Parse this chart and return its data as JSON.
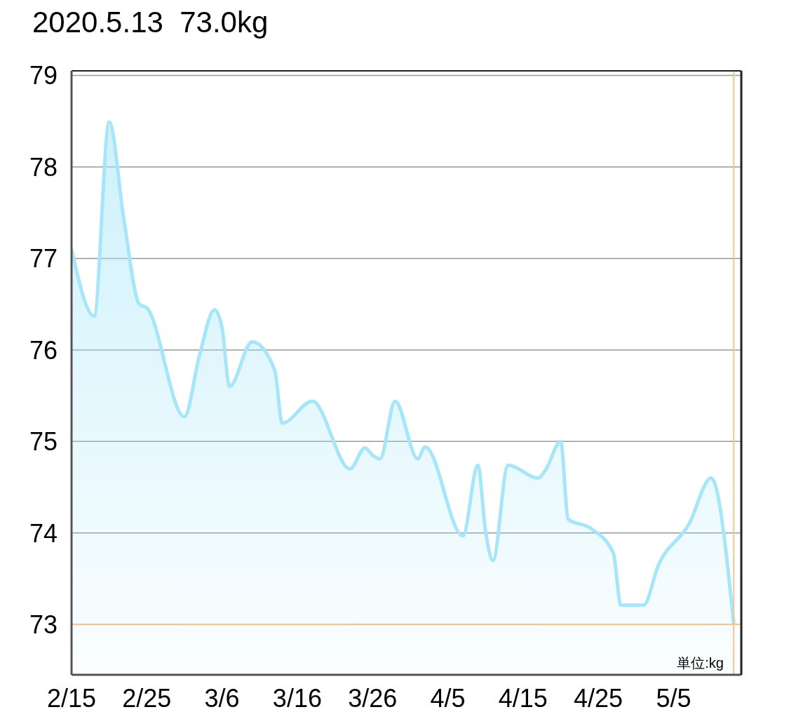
{
  "chart_data": {
    "type": "area",
    "title": "2020.5.13  73.0kg",
    "annotations": [
      "単位:kg"
    ],
    "x": [
      "2020-02-15",
      "2020-02-18",
      "2020-02-20",
      "2020-02-22",
      "2020-02-24",
      "2020-02-25",
      "2020-03-01",
      "2020-03-03",
      "2020-03-05",
      "2020-03-06",
      "2020-03-07",
      "2020-03-10",
      "2020-03-13",
      "2020-03-14",
      "2020-03-18",
      "2020-03-23",
      "2020-03-25",
      "2020-03-26",
      "2020-03-27",
      "2020-03-29",
      "2020-04-01",
      "2020-04-02",
      "2020-04-07",
      "2020-04-09",
      "2020-04-10",
      "2020-04-11",
      "2020-04-13",
      "2020-04-17",
      "2020-04-18",
      "2020-04-20",
      "2020-04-21",
      "2020-04-24",
      "2020-04-27",
      "2020-04-28",
      "2020-05-01",
      "2020-05-03",
      "2020-05-07",
      "2020-05-10",
      "2020-05-13"
    ],
    "series": [
      {
        "color": "#a6e6f8",
        "values": [
          77.1,
          76.37,
          78.49,
          77.4,
          76.5,
          76.46,
          75.27,
          75.94,
          76.44,
          76.24,
          75.6,
          76.09,
          75.78,
          75.2,
          75.44,
          74.7,
          74.93,
          74.85,
          74.81,
          75.44,
          74.81,
          74.94,
          73.97,
          74.74,
          74.03,
          73.7,
          74.74,
          74.6,
          74.69,
          75.0,
          74.15,
          74.05,
          73.78,
          73.21,
          73.21,
          73.65,
          74.09,
          74.6,
          73.0
        ]
      }
    ],
    "xlim": [
      "2020-02-15",
      "2020-05-14"
    ],
    "xticks": [
      {
        "value": "2020-02-15",
        "label": "2/15"
      },
      {
        "value": "2020-02-25",
        "label": "2/25"
      },
      {
        "value": "2020-03-06",
        "label": "3/6"
      },
      {
        "value": "2020-03-16",
        "label": "3/16"
      },
      {
        "value": "2020-03-26",
        "label": "3/26"
      },
      {
        "value": "2020-04-05",
        "label": "4/5"
      },
      {
        "value": "2020-04-15",
        "label": "4/15"
      },
      {
        "value": "2020-04-25",
        "label": "4/25"
      },
      {
        "value": "2020-05-05",
        "label": "5/5"
      }
    ],
    "ylim": [
      72.45,
      79.05
    ],
    "yticks": [
      73,
      74,
      75,
      76,
      77,
      78,
      79
    ],
    "grid": "y",
    "ref_lines": [
      {
        "axis": "y",
        "value": 73.0,
        "color": "#e8c89a"
      },
      {
        "axis": "x",
        "value": "2020-05-13",
        "color": "#e8c89a"
      }
    ]
  }
}
